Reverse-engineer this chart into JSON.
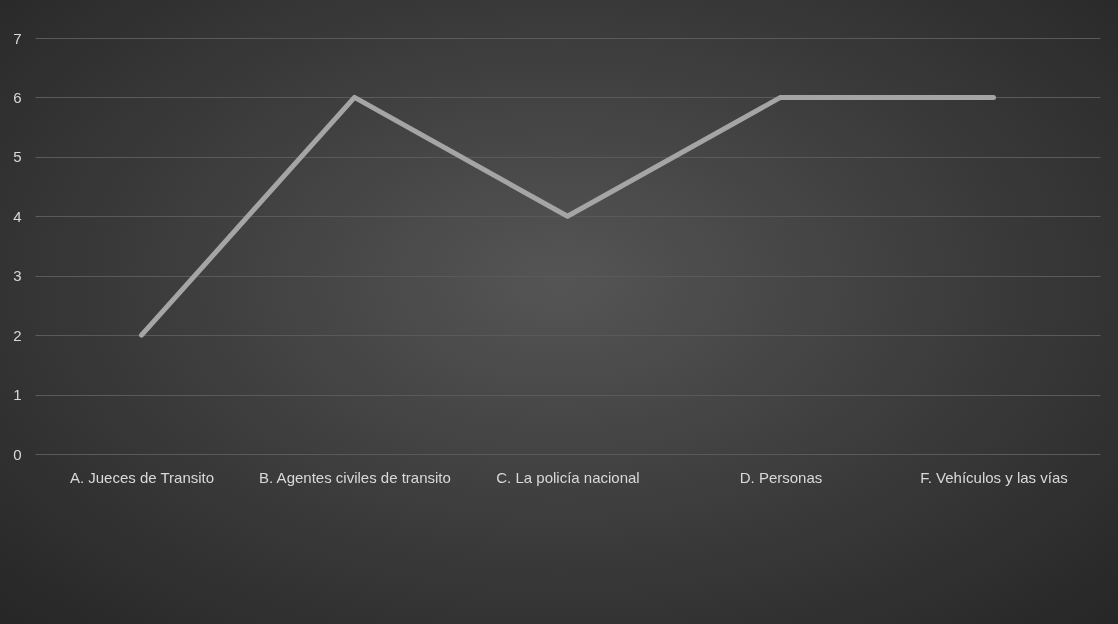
{
  "chart_data": {
    "type": "line",
    "categories": [
      "A. Jueces de Transito",
      "B. Agentes civiles de transito",
      "C. La policía nacional",
      "D. Personas",
      "F. Vehículos y las vías"
    ],
    "series": [
      {
        "color": "#a5a5a5",
        "values": [
          2,
          6,
          4,
          6,
          6
        ]
      }
    ],
    "ylim": [
      0,
      7
    ],
    "yticks": [
      0,
      1,
      2,
      3,
      4,
      5,
      6,
      7
    ],
    "grid": "y",
    "marker": "none",
    "line_style": "solid",
    "legend": false
  }
}
